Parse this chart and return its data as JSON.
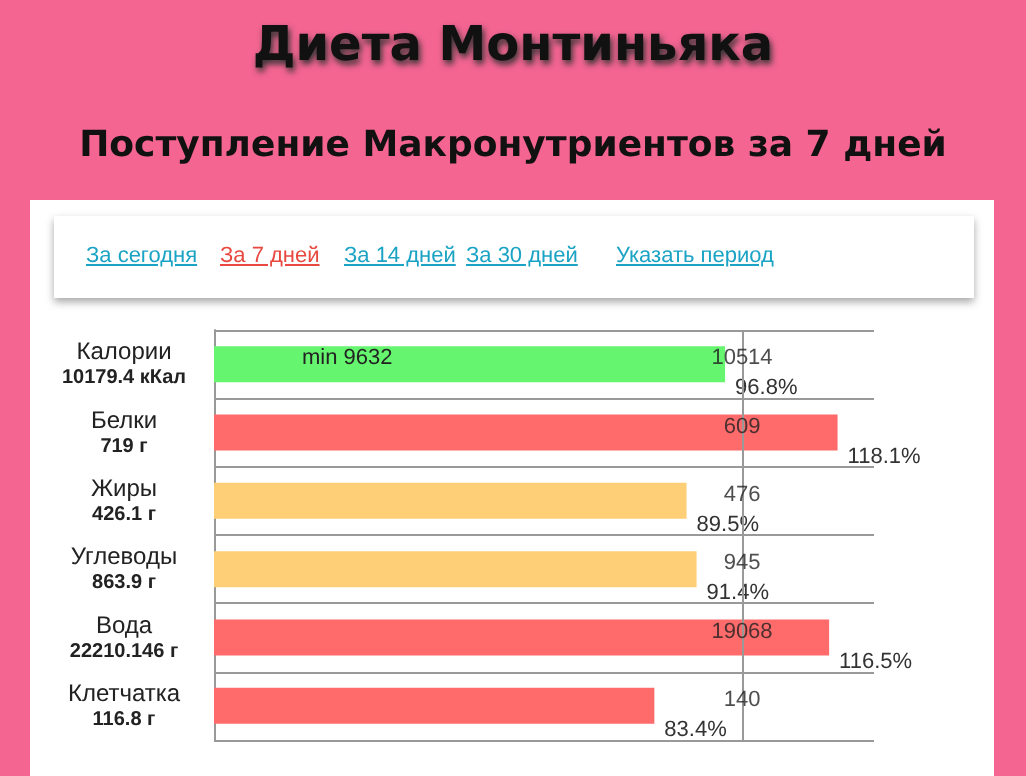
{
  "chart_data": {
    "type": "bar",
    "orientation": "horizontal",
    "title": "Диета Монтиньяка",
    "subtitle": "Поступление Макронутриентов за 7 дней",
    "categories": [
      "Калории\n10179.4 кКал",
      "Белки\n719 г",
      "Жиры\n426.1 г",
      "Углеводы\n863.9 г",
      "Вода\n22210.146 г",
      "Клетчатка\n116.8 г"
    ],
    "values": [
      96.8,
      118.1,
      89.5,
      91.4,
      116.5,
      83.4
    ],
    "value_labels": [
      "96.8%",
      "118.1%",
      "89.5%",
      "91.4%",
      "116.5%",
      "83.4%"
    ],
    "colors": [
      "#66f56e",
      "#ff6b6b",
      "#ffcf77",
      "#ffcf77",
      "#ff6b6b",
      "#ff6b6b"
    ],
    "xlim": [
      0,
      125
    ],
    "grid": "y",
    "ref_lines": [
      {
        "axis": "x",
        "value": 100,
        "color": "#999999"
      }
    ],
    "annotations": [
      "За сегодня",
      "За 7 дней",
      "За 14 дней",
      "За 30 дней",
      "Указать период",
      "min 9632",
      {
        "text": "10514",
        "y": "Калории\n10179.4 кКал"
      },
      {
        "text": "609",
        "y": "Белки\n719 г"
      },
      {
        "text": "476",
        "y": "Жиры\n426.1 г"
      },
      {
        "text": "945",
        "y": "Углеводы\n863.9 г"
      },
      {
        "text": "19068",
        "y": "Вода\n22210.146 г"
      },
      {
        "text": "140",
        "y": "Клетчатка\n116.8 г"
      }
    ]
  }
}
